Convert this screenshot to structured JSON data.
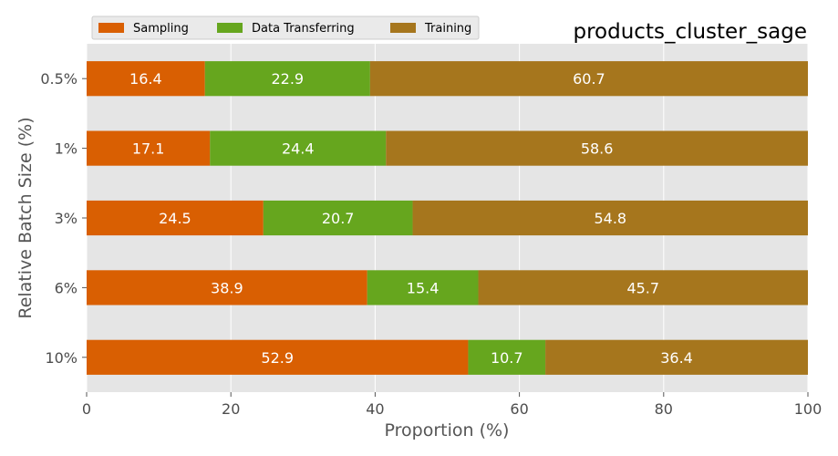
{
  "chart_data": {
    "type": "bar",
    "orientation": "horizontal",
    "stacked": true,
    "title": "products_cluster_sage",
    "xlabel": "Proportion (%)",
    "ylabel": "Relative Batch Size (%)",
    "xlim": [
      0,
      100
    ],
    "x_ticks": [
      "0",
      "20",
      "40",
      "60",
      "80",
      "100"
    ],
    "x_tick_values": [
      0,
      20,
      40,
      60,
      80,
      100
    ],
    "grid": true,
    "legend_position": "top-left",
    "categories": [
      "0.5%",
      "1%",
      "3%",
      "6%",
      "10%"
    ],
    "series": [
      {
        "name": "Sampling",
        "color": "#d95f02",
        "values": [
          16.4,
          17.1,
          24.5,
          38.9,
          52.9
        ],
        "labels": [
          "16.4",
          "17.1",
          "24.5",
          "38.9",
          "52.9"
        ]
      },
      {
        "name": "Data Transferring",
        "color": "#66a61e",
        "values": [
          22.9,
          24.4,
          20.7,
          15.4,
          10.7
        ],
        "labels": [
          "22.9",
          "24.4",
          "20.7",
          "15.4",
          "10.7"
        ]
      },
      {
        "name": "Training",
        "color": "#a6761d",
        "values": [
          60.7,
          58.6,
          54.8,
          45.7,
          36.4
        ],
        "labels": [
          "60.7",
          "58.6",
          "54.8",
          "45.7",
          "36.4"
        ]
      }
    ]
  }
}
